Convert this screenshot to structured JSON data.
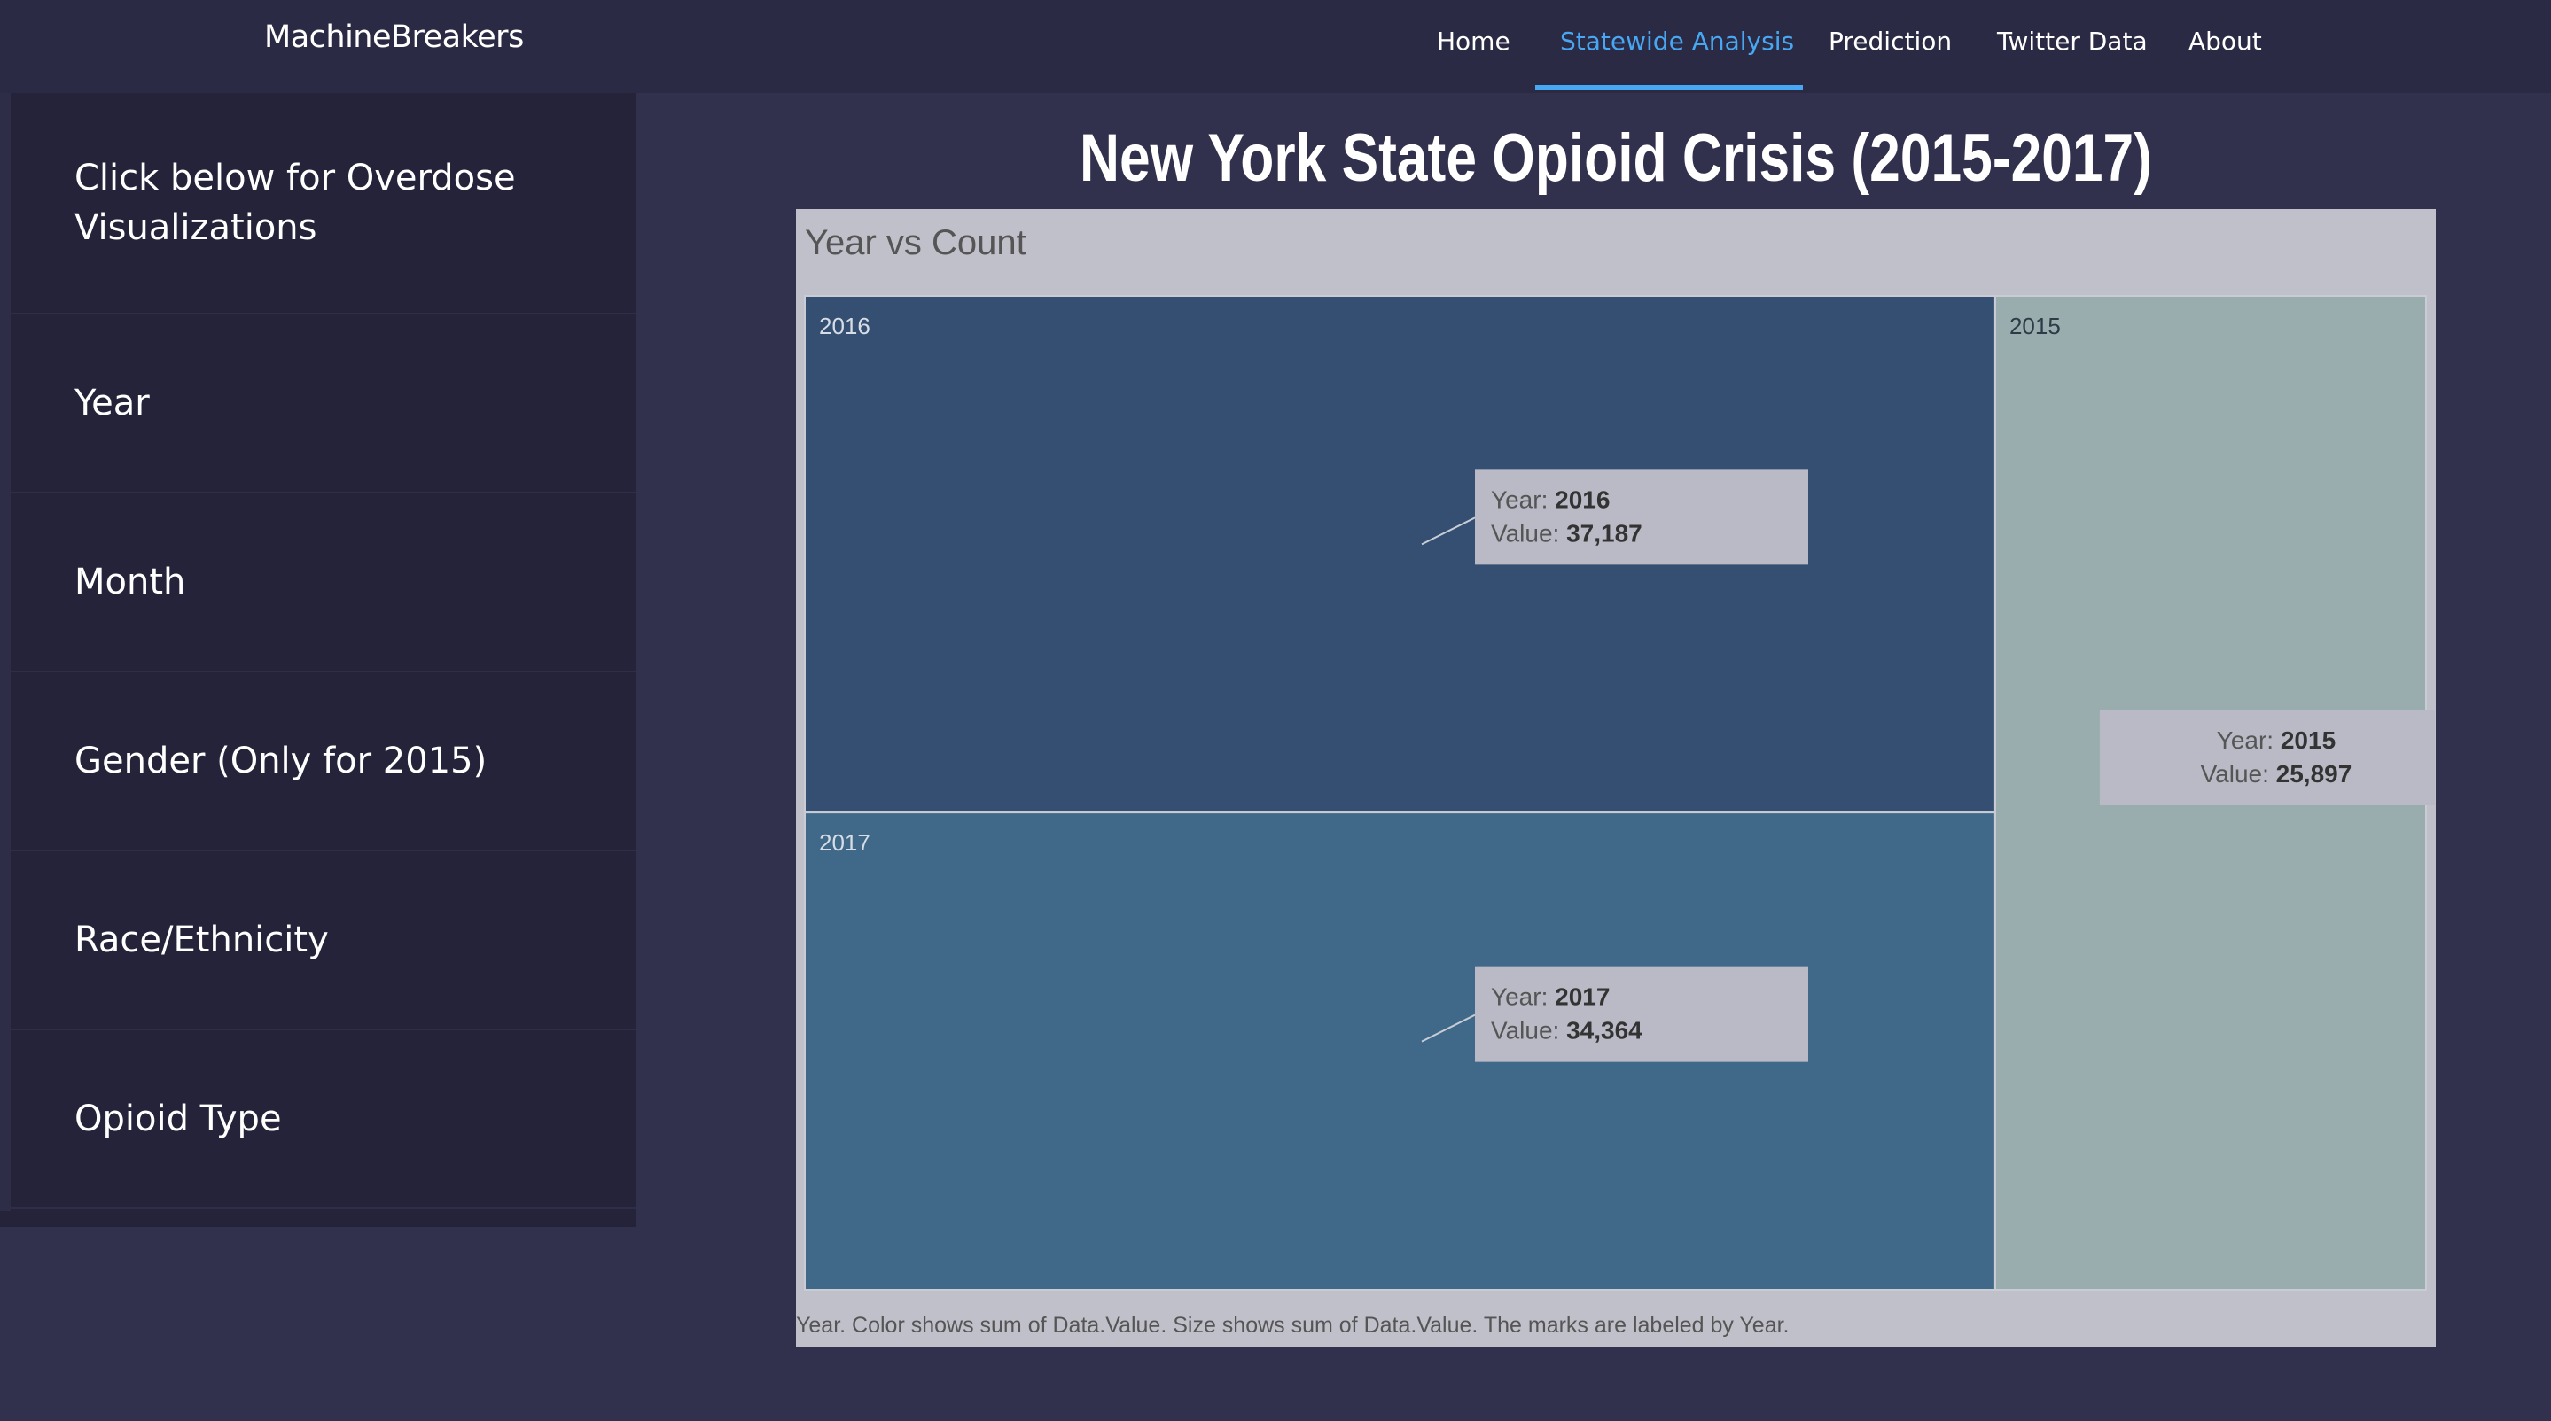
{
  "nav": {
    "brand": "MachineBreakers",
    "links": [
      "Home",
      "Statewide Analysis",
      "Prediction",
      "Twitter Data",
      "About"
    ],
    "active_color": "#48a7f2"
  },
  "sidebar": {
    "items": [
      "Click below for Overdose Visualizations",
      "Year",
      "Month",
      "Gender (Only for 2015)",
      "Race/Ethnicity",
      "Opioid Type"
    ]
  },
  "page": {
    "title": "New York State Opioid Crisis (2015-2017)"
  },
  "chart_data": {
    "type": "treemap",
    "title": "Year vs Count",
    "caption": "Year.  Color shows sum of Data.Value.  Size shows sum of Data.Value.  The marks are labeled by Year.",
    "tooltip_labels": {
      "year": "Year:",
      "value": "Value:"
    },
    "nodes": [
      {
        "label": "2016",
        "value": 37187,
        "value_text": "37,187",
        "color": "#354f72"
      },
      {
        "label": "2017",
        "value": 34364,
        "value_text": "34,364",
        "color": "#406888"
      },
      {
        "label": "2015",
        "value": 25897,
        "value_text": "25,897",
        "color": "#99adaf"
      }
    ]
  }
}
